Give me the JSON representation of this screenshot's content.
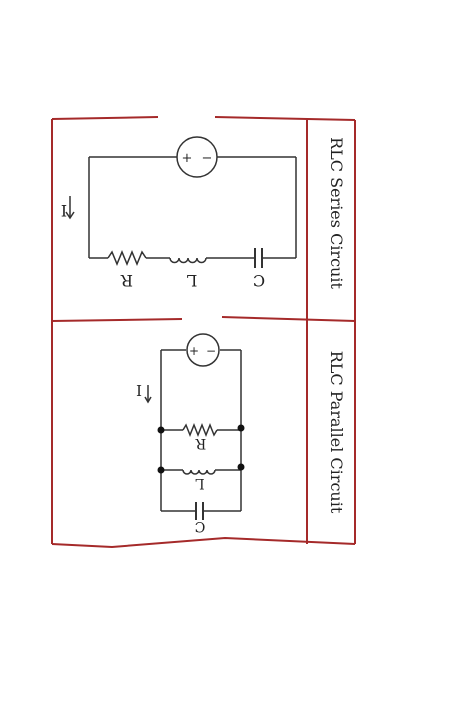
{
  "series_panel": {
    "title": "RLC Series Circuit",
    "current_label": "I",
    "resistor_label": "R",
    "inductor_label": "L",
    "capacitor_label": "C",
    "source_plus": "+",
    "source_minus": "−"
  },
  "parallel_panel": {
    "title": "RLC Parallel Circuit",
    "current_label": "I",
    "resistor_label": "R",
    "inductor_label": "L",
    "capacitor_label": "C",
    "source_plus": "+",
    "source_minus": "−"
  },
  "colors": {
    "border": "#a52a2a",
    "wire": "#333333"
  }
}
